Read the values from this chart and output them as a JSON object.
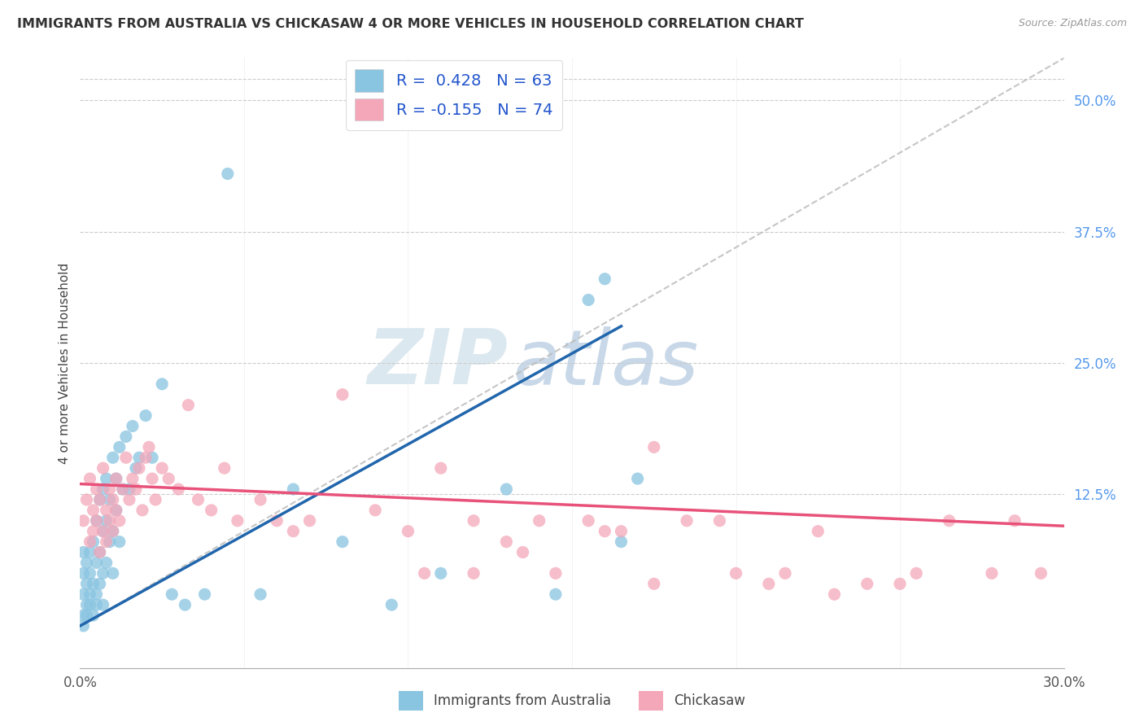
{
  "title": "IMMIGRANTS FROM AUSTRALIA VS CHICKASAW 4 OR MORE VEHICLES IN HOUSEHOLD CORRELATION CHART",
  "source": "Source: ZipAtlas.com",
  "ylabel": "4 or more Vehicles in Household",
  "right_yticks": [
    "50.0%",
    "37.5%",
    "25.0%",
    "12.5%"
  ],
  "right_ytick_vals": [
    0.5,
    0.375,
    0.25,
    0.125
  ],
  "xmin": 0.0,
  "xmax": 0.3,
  "ymin": -0.04,
  "ymax": 0.54,
  "color_blue": "#89c4e1",
  "color_pink": "#f4a7b9",
  "trendline_blue": "#2166ac",
  "trendline_pink": "#e8527a",
  "trendline_gray": "#b8b8b8",
  "blue_scatter_x": [
    0.001,
    0.001,
    0.001,
    0.001,
    0.001,
    0.002,
    0.002,
    0.002,
    0.002,
    0.003,
    0.003,
    0.003,
    0.003,
    0.004,
    0.004,
    0.004,
    0.005,
    0.005,
    0.005,
    0.005,
    0.006,
    0.006,
    0.006,
    0.007,
    0.007,
    0.007,
    0.007,
    0.008,
    0.008,
    0.008,
    0.009,
    0.009,
    0.01,
    0.01,
    0.01,
    0.011,
    0.011,
    0.012,
    0.012,
    0.013,
    0.014,
    0.015,
    0.016,
    0.017,
    0.018,
    0.02,
    0.022,
    0.025,
    0.028,
    0.032,
    0.038,
    0.045,
    0.055,
    0.065,
    0.08,
    0.095,
    0.11,
    0.13,
    0.145,
    0.155,
    0.16,
    0.165,
    0.17
  ],
  "blue_scatter_y": [
    0.01,
    0.03,
    0.05,
    0.07,
    0.0,
    0.02,
    0.04,
    0.06,
    0.01,
    0.03,
    0.07,
    0.02,
    0.05,
    0.01,
    0.04,
    0.08,
    0.02,
    0.06,
    0.1,
    0.03,
    0.04,
    0.07,
    0.12,
    0.05,
    0.09,
    0.13,
    0.02,
    0.06,
    0.1,
    0.14,
    0.08,
    0.12,
    0.05,
    0.09,
    0.16,
    0.11,
    0.14,
    0.08,
    0.17,
    0.13,
    0.18,
    0.13,
    0.19,
    0.15,
    0.16,
    0.2,
    0.16,
    0.23,
    0.03,
    0.02,
    0.03,
    0.43,
    0.03,
    0.13,
    0.08,
    0.02,
    0.05,
    0.13,
    0.03,
    0.31,
    0.33,
    0.08,
    0.14
  ],
  "pink_scatter_x": [
    0.001,
    0.002,
    0.003,
    0.003,
    0.004,
    0.004,
    0.005,
    0.005,
    0.006,
    0.006,
    0.007,
    0.007,
    0.008,
    0.008,
    0.009,
    0.009,
    0.01,
    0.01,
    0.011,
    0.011,
    0.012,
    0.013,
    0.014,
    0.015,
    0.016,
    0.017,
    0.018,
    0.019,
    0.02,
    0.021,
    0.022,
    0.023,
    0.025,
    0.027,
    0.03,
    0.033,
    0.036,
    0.04,
    0.044,
    0.048,
    0.055,
    0.06,
    0.065,
    0.07,
    0.08,
    0.09,
    0.1,
    0.11,
    0.12,
    0.13,
    0.14,
    0.155,
    0.165,
    0.175,
    0.185,
    0.2,
    0.215,
    0.225,
    0.24,
    0.255,
    0.265,
    0.278,
    0.285,
    0.293,
    0.25,
    0.23,
    0.21,
    0.195,
    0.175,
    0.16,
    0.145,
    0.135,
    0.12,
    0.105
  ],
  "pink_scatter_y": [
    0.1,
    0.12,
    0.08,
    0.14,
    0.11,
    0.09,
    0.13,
    0.1,
    0.07,
    0.12,
    0.09,
    0.15,
    0.11,
    0.08,
    0.13,
    0.1,
    0.12,
    0.09,
    0.14,
    0.11,
    0.1,
    0.13,
    0.16,
    0.12,
    0.14,
    0.13,
    0.15,
    0.11,
    0.16,
    0.17,
    0.14,
    0.12,
    0.15,
    0.14,
    0.13,
    0.21,
    0.12,
    0.11,
    0.15,
    0.1,
    0.12,
    0.1,
    0.09,
    0.1,
    0.22,
    0.11,
    0.09,
    0.15,
    0.1,
    0.08,
    0.1,
    0.1,
    0.09,
    0.17,
    0.1,
    0.05,
    0.05,
    0.09,
    0.04,
    0.05,
    0.1,
    0.05,
    0.1,
    0.05,
    0.04,
    0.03,
    0.04,
    0.1,
    0.04,
    0.09,
    0.05,
    0.07,
    0.05,
    0.05
  ],
  "blue_trend_x0": 0.0,
  "blue_trend_y0": 0.0,
  "blue_trend_x1": 0.165,
  "blue_trend_y1": 0.285,
  "pink_trend_x0": 0.0,
  "pink_trend_y0": 0.135,
  "pink_trend_x1": 0.3,
  "pink_trend_y1": 0.095,
  "gray_trend_x0": 0.0,
  "gray_trend_y0": 0.0,
  "gray_trend_x1": 0.3,
  "gray_trend_y1": 0.54
}
